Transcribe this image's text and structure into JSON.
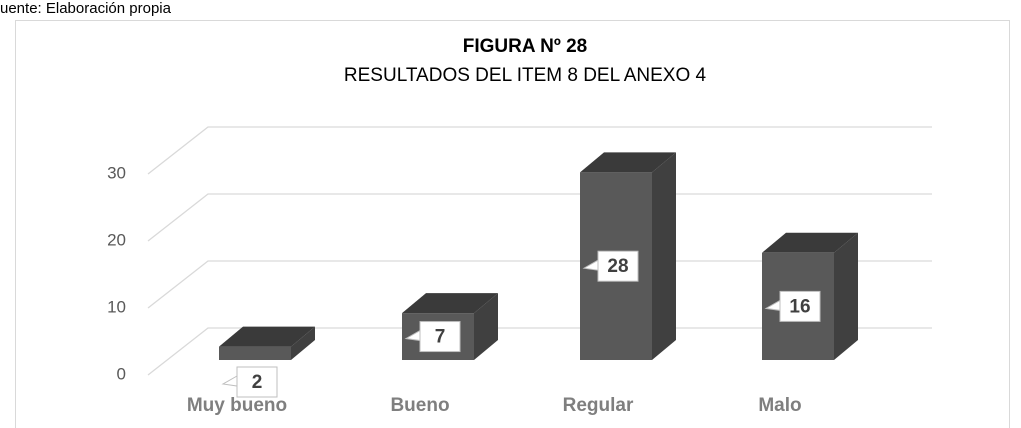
{
  "source": "uente: Elaboración propia",
  "chart_data": {
    "type": "bar3d",
    "title": "FIGURA Nº 28",
    "subtitle": "RESULTADOS DEL ITEM 8 DEL ANEXO 4",
    "categories": [
      "Muy bueno",
      "Bueno",
      "Regular",
      "Malo"
    ],
    "values": [
      2,
      7,
      28,
      16
    ],
    "color": "#595959",
    "ylim": [
      0,
      30
    ],
    "yticks": [
      0,
      10,
      20,
      30
    ],
    "grid": true
  }
}
